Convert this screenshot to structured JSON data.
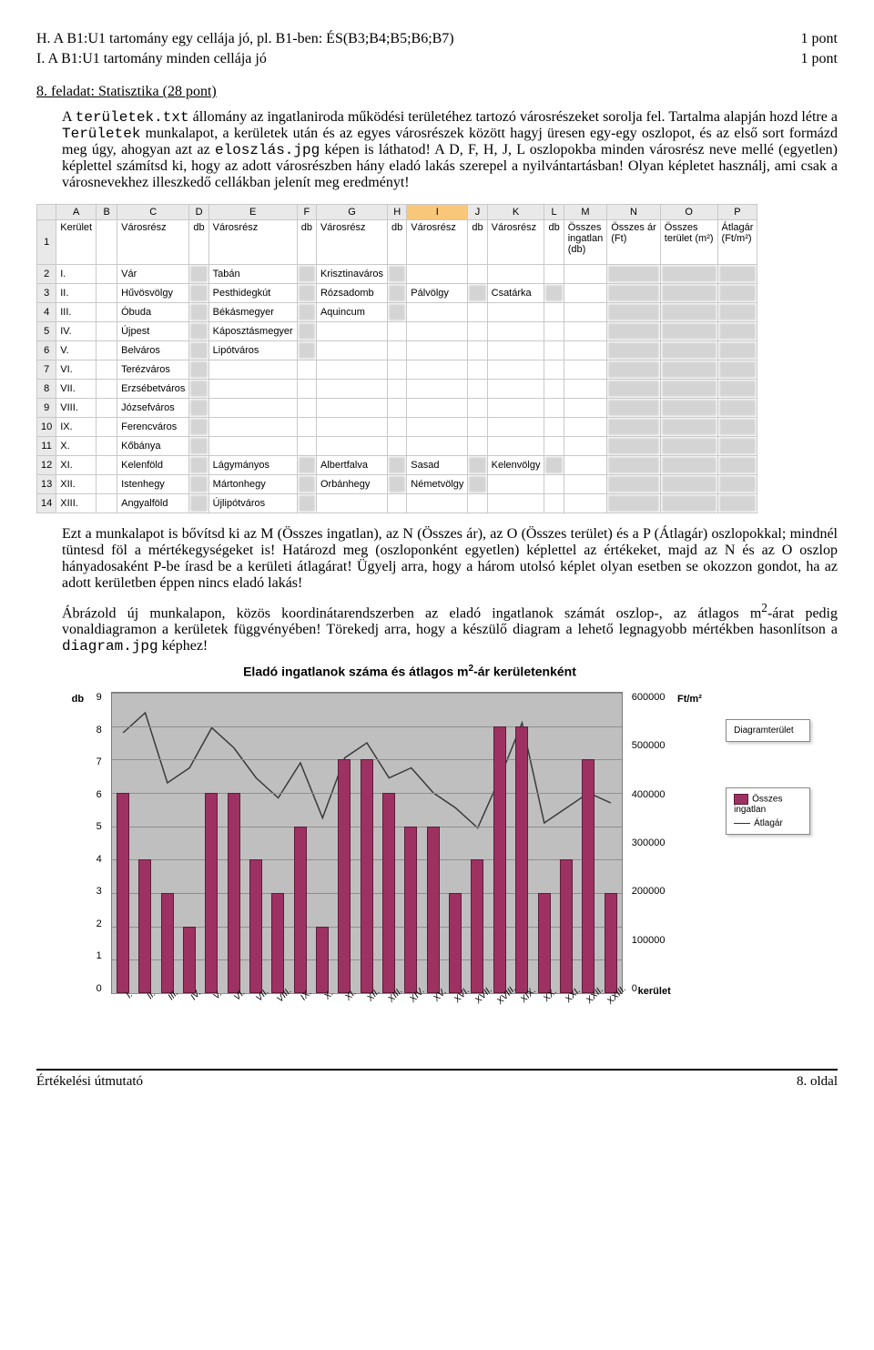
{
  "lines": {
    "H": {
      "label": "H. A B1:U1 tartomány egy cellája jó, pl. B1-ben: ÉS(B3;B4;B5;B6;B7)",
      "pts": "1 pont"
    },
    "I": {
      "label": "I. A B1:U1 tartomány minden cellája jó",
      "pts": "1 pont"
    }
  },
  "task8": {
    "heading": "8. feladat: Statisztika (28 pont)",
    "p1a": "A ",
    "p1b": "területek.txt",
    "p1c": " állomány az ingatlaniroda működési területéhez tartozó városrészeket sorolja fel. Tartalma alapján hozd létre a ",
    "p1d": "Területek",
    "p1e": " munkalapot, a kerületek után és az egyes városrészek között hagyj üresen egy-egy oszlopot, és az első sort formázd meg úgy, ahogyan azt az ",
    "p1f": "eloszlás.jpg",
    "p1g": " képen is láthatod! A D, F, H, J, L oszlopokba minden városrész neve mellé (egyetlen) képlettel számítsd ki, hogy az adott városrészben hány eladó lakás szerepel a nyilvántartásban! Olyan képletet használj, ami csak a városnevekhez illeszkedő cellákban jelenít meg eredményt!",
    "p2": "Ezt a munkalapot is bővítsd ki az M (Összes ingatlan), az N (Összes ár), az O (Összes terület) és a P (Átlagár) oszlopokkal; mindnél tüntesd föl a mértékegységeket is! Határozd meg (oszloponként egyetlen) képlettel az értékeket, majd az N és az O oszlop hányadosaként P-be írasd be a kerületi átlagárat! Ügyelj arra, hogy a három utolsó képlet olyan esetben se okozzon gondot, ha az adott kerületben éppen nincs eladó lakás!",
    "p3a": "Ábrázold új munkalapon, közös koordinátarendszerben az eladó ingatlanok számát oszlop-, az átlagos m",
    "p3b": "-árat pedig vonaldiagramon a kerületek függvényében! Törekedj arra, hogy a készülő diagram a lehető legnagyobb mértékben hasonlítson a ",
    "p3c": "diagram.jpg",
    "p3d": " képhez!"
  },
  "sheet": {
    "colLetters": [
      "A",
      "B",
      "C",
      "D",
      "E",
      "F",
      "G",
      "H",
      "I",
      "J",
      "K",
      "L",
      "M",
      "N",
      "O",
      "P"
    ],
    "selectedCol": "I",
    "headers": [
      "Kerület",
      "",
      "Városrész",
      "db",
      "Városrész",
      "db",
      "Városrész",
      "db",
      "Városrész",
      "db",
      "Városrész",
      "db",
      "Összes\ningatlan\n(db)",
      "Összes ár\n(Ft)",
      "Összes\nterület (m²)",
      "Átlagár\n(Ft/m²)"
    ],
    "rows": [
      [
        "I.",
        "",
        "Vár",
        "",
        "Tabán",
        "",
        "Krisztinaváros",
        "",
        "",
        "",
        "",
        "",
        "",
        " ",
        " ",
        " "
      ],
      [
        "II.",
        "",
        "Hűvösvölgy",
        "",
        "Pesthidegkút",
        "",
        "Rózsadomb",
        "",
        "Pálvölgy",
        "",
        "Csatárka",
        "",
        "",
        " ",
        " ",
        " "
      ],
      [
        "III.",
        "",
        "Óbuda",
        "",
        "Békásmegyer",
        "",
        "Aquincum",
        "",
        "",
        "",
        "",
        "",
        "",
        " ",
        " ",
        " "
      ],
      [
        "IV.",
        "",
        "Újpest",
        "",
        "Káposztásmegyer",
        "",
        "",
        "",
        "",
        "",
        "",
        "",
        "",
        " ",
        " ",
        " "
      ],
      [
        "V.",
        "",
        "Belváros",
        "",
        "Lipótváros",
        "",
        "",
        "",
        "",
        "",
        "",
        "",
        "",
        " ",
        " ",
        " "
      ],
      [
        "VI.",
        "",
        "Terézváros",
        "",
        "",
        "",
        "",
        "",
        "",
        "",
        "",
        "",
        "",
        " ",
        " ",
        " "
      ],
      [
        "VII.",
        "",
        "Erzsébetváros",
        "",
        "",
        "",
        "",
        "",
        "",
        "",
        "",
        "",
        "",
        " ",
        " ",
        " "
      ],
      [
        "VIII.",
        "",
        "Józsefváros",
        "",
        "",
        "",
        "",
        "",
        "",
        "",
        "",
        "",
        "",
        " ",
        " ",
        " "
      ],
      [
        "IX.",
        "",
        "Ferencváros",
        "",
        "",
        "",
        "",
        "",
        "",
        "",
        "",
        "",
        "",
        " ",
        " ",
        " "
      ],
      [
        "X.",
        "",
        "Kőbánya",
        "",
        "",
        "",
        "",
        "",
        "",
        "",
        "",
        "",
        "",
        " ",
        " ",
        " "
      ],
      [
        "XI.",
        "",
        "Kelenföld",
        "",
        "Lágymányos",
        "",
        "Albertfalva",
        "",
        "Sasad",
        "",
        "Kelenvölgy",
        "",
        "",
        " ",
        " ",
        " "
      ],
      [
        "XII.",
        "",
        "Istenhegy",
        "",
        "Mártonhegy",
        "",
        "Orbánhegy",
        "",
        "Németvölgy",
        "",
        "",
        "",
        "",
        " ",
        " ",
        " "
      ],
      [
        "XIII.",
        "",
        "Angyalföld",
        "",
        "Újlipótváros",
        "",
        "",
        "",
        "",
        "",
        "",
        "",
        "",
        " ",
        " ",
        " "
      ]
    ]
  },
  "chart": {
    "title": "Eladó ingatlanok száma és átlagos m²-ár kerületenként",
    "leftAxisLabel": "db",
    "rightAxisLabel": "Ft/m²",
    "xAxisLabel": "kerület",
    "yLeft": {
      "min": 0,
      "max": 9,
      "step": 1
    },
    "yRight": {
      "min": 0,
      "max": 600000,
      "step": 100000
    },
    "plotBg": "#bfbfbf",
    "gridColor": "#8f8f8f",
    "barColor": "#9d3262",
    "barBorder": "#5c1d39",
    "lineColor": "#3a3a3a",
    "categories": [
      "I.",
      "II.",
      "III.",
      "IV.",
      "V.",
      "VI.",
      "VII.",
      "VIII.",
      "IX.",
      "X.",
      "XI.",
      "XII.",
      "XIII.",
      "XIV.",
      "XV.",
      "XVI.",
      "XVII.",
      "XVIII.",
      "XIX.",
      "XX.",
      "XXI.",
      "XXII.",
      "XXIII."
    ],
    "bars": [
      6,
      4,
      3,
      2,
      6,
      6,
      4,
      3,
      5,
      2,
      7,
      7,
      6,
      5,
      5,
      3,
      4,
      8,
      8,
      3,
      4,
      7,
      3
    ],
    "line": [
      520000,
      560000,
      420000,
      450000,
      530000,
      490000,
      430000,
      390000,
      460000,
      350000,
      470000,
      500000,
      430000,
      450000,
      400000,
      370000,
      330000,
      430000,
      540000,
      340000,
      370000,
      400000,
      380000
    ],
    "legend1": "Diagramterület",
    "legend2a": "Összes ingatlan",
    "legend2b": "Átlagár"
  },
  "footer": {
    "left": "Értékelési útmutató",
    "right": "8. oldal"
  }
}
